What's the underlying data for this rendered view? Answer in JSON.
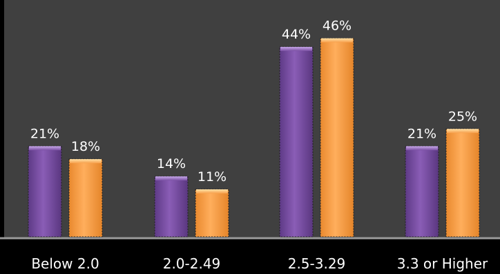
{
  "chart_data": {
    "type": "bar",
    "categories": [
      "Below 2.0",
      "2.0-2.49",
      "2.5-3.29",
      "3.3 or Higher"
    ],
    "series": [
      {
        "values": [
          21,
          14,
          44,
          21
        ],
        "labels": [
          "21%",
          "14%",
          "44%",
          "21%"
        ],
        "color": "#7a4fa3"
      },
      {
        "values": [
          18,
          11,
          46,
          25
        ],
        "labels": [
          "18%",
          "11%",
          "46%",
          "25%"
        ],
        "color": "#f7a04c"
      }
    ],
    "title": "",
    "xlabel": "",
    "ylabel": "",
    "ylim": [
      0,
      50
    ],
    "grid": false,
    "legend": "none",
    "colors": {
      "plot_background": "#404040",
      "page_background": "#000000",
      "axis": "#9a9a9a"
    }
  }
}
